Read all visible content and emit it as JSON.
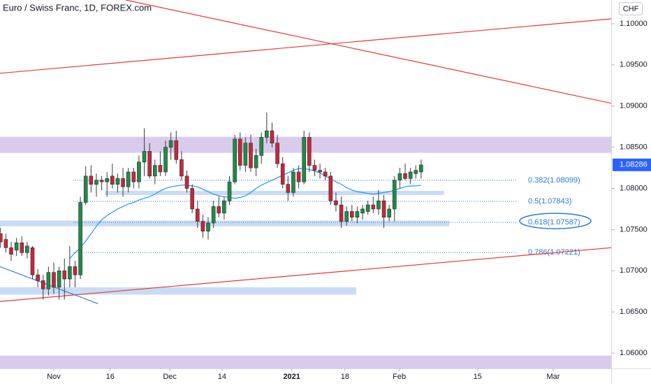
{
  "chart_data": {
    "type": "candlestick",
    "title": "Euro / Swiss Franc, 1D, FOREX.com",
    "currency": "CHF",
    "up_color": "#1e8c45",
    "down_color": "#c7263b",
    "wick_color": "#3a3a3a",
    "open": [
      1.0745,
      1.0738,
      1.0728,
      1.0725,
      1.0734,
      1.0722,
      1.0728,
      1.0695,
      1.0688,
      1.0678,
      1.0698,
      1.068,
      1.07,
      1.069,
      1.0705,
      1.0695,
      1.0783,
      1.0815,
      1.0805,
      1.081,
      1.0808,
      1.0815,
      1.0805,
      1.0812,
      1.0802,
      1.082,
      1.0808,
      1.0832,
      1.0845,
      1.0815,
      1.0828,
      1.082,
      1.085,
      1.0858,
      1.0835,
      1.0815,
      1.08,
      1.0775,
      1.076,
      1.0748,
      1.0758,
      1.0778,
      1.077,
      1.0785,
      1.0808,
      1.086,
      1.0828,
      1.0855,
      1.0825,
      1.084,
      1.0862,
      1.087,
      1.0855,
      1.083,
      1.0805,
      1.0795,
      1.082,
      1.0808,
      1.0862,
      1.0828,
      1.0822,
      1.082,
      1.0815,
      1.0785,
      1.078,
      1.076,
      1.0772,
      1.0765,
      1.077,
      1.0772,
      1.078,
      1.0775,
      1.0785,
      1.0765,
      1.0775,
      1.081,
      1.0818,
      1.0812,
      1.0818,
      1.082
    ],
    "high": [
      1.0752,
      1.0745,
      1.0735,
      1.074,
      1.0742,
      1.0735,
      1.073,
      1.0702,
      1.0695,
      1.0705,
      1.071,
      1.0705,
      1.0715,
      1.073,
      1.0712,
      1.079,
      1.0827,
      1.0828,
      1.0818,
      1.0815,
      1.082,
      1.083,
      1.0818,
      1.0825,
      1.0825,
      1.0825,
      1.084,
      1.0873,
      1.0855,
      1.0835,
      1.0845,
      1.0858,
      1.0868,
      1.087,
      1.0845,
      1.0822,
      1.0805,
      1.0785,
      1.0768,
      1.0765,
      1.0785,
      1.079,
      1.079,
      1.0815,
      1.0865,
      1.0868,
      1.0862,
      1.0865,
      1.0848,
      1.0868,
      1.0892,
      1.088,
      1.0865,
      1.0838,
      1.0815,
      1.0825,
      1.0828,
      1.087,
      1.0868,
      1.0835,
      1.083,
      1.0825,
      1.082,
      1.0795,
      1.079,
      1.0778,
      1.078,
      1.0778,
      1.078,
      1.0785,
      1.079,
      1.0798,
      1.0792,
      1.078,
      1.0815,
      1.0825,
      1.083,
      1.0825,
      1.0828,
      1.0835
    ],
    "low": [
      1.0728,
      1.0722,
      1.0712,
      1.0718,
      1.0718,
      1.0715,
      1.069,
      1.068,
      1.0665,
      1.067,
      1.0672,
      1.0665,
      1.0665,
      1.068,
      1.068,
      1.069,
      1.078,
      1.0795,
      1.079,
      1.0798,
      1.079,
      1.08,
      1.0795,
      1.079,
      1.0795,
      1.08,
      1.08,
      1.0815,
      1.0812,
      1.0805,
      1.0815,
      1.0815,
      1.0835,
      1.083,
      1.081,
      1.0795,
      1.077,
      1.0752,
      1.074,
      1.0738,
      1.0752,
      1.0765,
      1.0762,
      1.078,
      1.0805,
      1.0822,
      1.082,
      1.082,
      1.0815,
      1.083,
      1.0855,
      1.085,
      1.0825,
      1.08,
      1.0785,
      1.079,
      1.08,
      1.0805,
      1.082,
      1.0815,
      1.0812,
      1.081,
      1.078,
      1.0772,
      1.0752,
      1.0755,
      1.076,
      1.0758,
      1.0762,
      1.0768,
      1.077,
      1.0768,
      1.0752,
      1.076,
      1.076,
      1.08,
      1.081,
      1.0805,
      1.0812,
      1.0812
    ],
    "close": [
      1.0735,
      1.0728,
      1.072,
      1.0734,
      1.0722,
      1.073,
      1.0695,
      1.0688,
      1.0678,
      1.0698,
      1.068,
      1.07,
      1.069,
      1.0705,
      1.0695,
      1.0783,
      1.0815,
      1.0805,
      1.081,
      1.0808,
      1.0812,
      1.0805,
      1.0812,
      1.0802,
      1.082,
      1.0808,
      1.0832,
      1.0845,
      1.0815,
      1.0828,
      1.082,
      1.085,
      1.0858,
      1.0835,
      1.0815,
      1.08,
      1.0775,
      1.076,
      1.0748,
      1.0758,
      1.0778,
      1.077,
      1.0785,
      1.0808,
      1.086,
      1.0828,
      1.0855,
      1.0825,
      1.084,
      1.0862,
      1.087,
      1.0855,
      1.083,
      1.0805,
      1.0795,
      1.082,
      1.0808,
      1.0862,
      1.0828,
      1.0822,
      1.082,
      1.0815,
      1.0785,
      1.078,
      1.076,
      1.0772,
      1.0765,
      1.0772,
      1.0775,
      1.078,
      1.0775,
      1.0785,
      1.0765,
      1.0775,
      1.081,
      1.0818,
      1.0812,
      1.082,
      1.0822,
      1.08286
    ],
    "ma": {
      "color": "#2196f3",
      "values": [
        null,
        null,
        null,
        null,
        null,
        null,
        null,
        null,
        null,
        null,
        null,
        null,
        null,
        1.0715,
        1.0722,
        1.0728,
        1.0736,
        1.0745,
        1.0754,
        1.0762,
        1.0767,
        1.0771,
        1.0775,
        1.0778,
        1.0781,
        1.0783,
        1.0786,
        1.0788,
        1.079,
        1.0793,
        1.0797,
        1.08,
        1.0802,
        1.0803,
        1.0804,
        1.0804,
        1.0803,
        1.0802,
        1.0799,
        1.0796,
        1.0793,
        1.0791,
        1.079,
        1.0789,
        1.0788,
        1.0789,
        1.0791,
        1.0795,
        1.08,
        1.0804,
        1.0807,
        1.081,
        1.0813,
        1.0816,
        1.0819,
        1.0822,
        1.0824,
        1.0824,
        1.0823,
        1.0821,
        1.0819,
        1.0815,
        1.0812,
        1.0808,
        1.0805,
        1.0801,
        1.0798,
        1.0796,
        1.0795,
        1.0794,
        1.0793,
        1.0794,
        1.0795,
        1.0796,
        1.0798,
        1.08,
        1.0802,
        1.0803,
        1.0803,
        1.0804
      ]
    },
    "xlim": [
      -0.1,
      114.7
    ],
    "xticks": [
      {
        "value": 10,
        "label": "Nov"
      },
      {
        "value": 20.6,
        "label": "16"
      },
      {
        "value": 31.8,
        "label": "Dec"
      },
      {
        "value": 41.6,
        "label": "14"
      },
      {
        "value": 54.7,
        "label": "2021"
      },
      {
        "value": 64.7,
        "label": "18"
      },
      {
        "value": 74.9,
        "label": "Feb"
      },
      {
        "value": 89.6,
        "label": "15"
      },
      {
        "value": 103.8,
        "label": "Mar"
      }
    ],
    "ylim": [
      1.05814,
      1.10288
    ],
    "yticks": [
      {
        "value": 1.1,
        "label": "1.10000"
      },
      {
        "value": 1.095,
        "label": "1.09500"
      },
      {
        "value": 1.09,
        "label": "1.09000"
      },
      {
        "value": 1.085,
        "label": "1.08500"
      },
      {
        "value": 1.08,
        "label": "1.08000"
      },
      {
        "value": 1.075,
        "label": "1.07500"
      },
      {
        "value": 1.07,
        "label": "1.07000"
      },
      {
        "value": 1.065,
        "label": "1.06500"
      },
      {
        "value": 1.06,
        "label": "1.06000"
      }
    ],
    "zones": [
      {
        "from": 1.08432,
        "to": 1.08627,
        "x": [
          -0.1,
          114.7
        ],
        "color": "#d9cbec"
      },
      {
        "from": 1.0581,
        "to": 1.0597,
        "x": [
          -0.1,
          114.7
        ],
        "color": "#d9cbec"
      },
      {
        "from": 1.0792,
        "to": 1.0797,
        "x": [
          19.6,
          83.3
        ],
        "color": "#c9dcf5"
      },
      {
        "from": 1.0754,
        "to": 1.0761,
        "x": [
          -0.1,
          84.3
        ],
        "color": "#c9dcf5"
      },
      {
        "from": 1.0671,
        "to": 1.068,
        "x": [
          -0.1,
          66.8
        ],
        "color": "#c9dcf5"
      }
    ],
    "trendlines": [
      {
        "x": [
          -0.1,
          114.7
        ],
        "y": [
          1.09398,
          1.10059
        ],
        "color": "#e53935"
      },
      {
        "x": [
          23.5,
          114.7
        ],
        "y": [
          1.10288,
          1.09034
        ],
        "color": "#e53935"
      },
      {
        "x": [
          -0.1,
          114.7
        ],
        "y": [
          1.06627,
          1.0728
        ],
        "color": "#e53935"
      },
      {
        "x": [
          -0.1,
          18.3
        ],
        "y": [
          1.0705,
          1.066
        ],
        "color": "#2f7fd1"
      }
    ],
    "fib_color": "#2a7bd6",
    "fib_levels": [
      {
        "value": 1.08099,
        "label": "0.382(1.08099)"
      },
      {
        "value": 1.07843,
        "label": "0.5(1.07843)"
      },
      {
        "value": 1.07587,
        "label": "0.618(1.07587)"
      },
      {
        "value": 1.07221,
        "label": "0.786(1.07221)"
      }
    ]
  }
}
